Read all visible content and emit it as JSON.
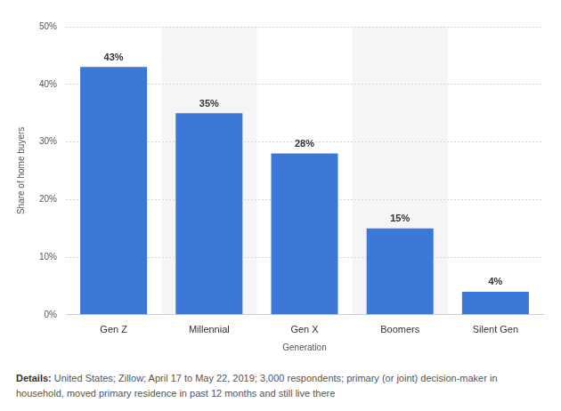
{
  "chart_data": {
    "type": "bar",
    "categories": [
      "Gen Z",
      "Millennial",
      "Gen X",
      "Boomers",
      "Silent Gen"
    ],
    "values": [
      43,
      35,
      28,
      15,
      4
    ],
    "value_labels": [
      "43%",
      "35%",
      "28%",
      "15%",
      "4%"
    ],
    "color": "#3c78d8",
    "x_label": "Generation",
    "y_label": "Share of home buyers",
    "ylim": [
      0,
      50
    ],
    "yticks": [
      {
        "value": 0,
        "label": "0%"
      },
      {
        "value": 10,
        "label": "10%"
      },
      {
        "value": 20,
        "label": "20%"
      },
      {
        "value": 30,
        "label": "30%"
      },
      {
        "value": 40,
        "label": "40%"
      },
      {
        "value": 50,
        "label": "50%"
      }
    ],
    "grid": true,
    "data_labels": true,
    "caption": {
      "label": "Details:",
      "text": "United States; Zillow; April 17 to May 22, 2019; 3,000 respondents; primary (or joint) decision-maker in household, moved primary residence in past 12 months and still live there"
    }
  }
}
